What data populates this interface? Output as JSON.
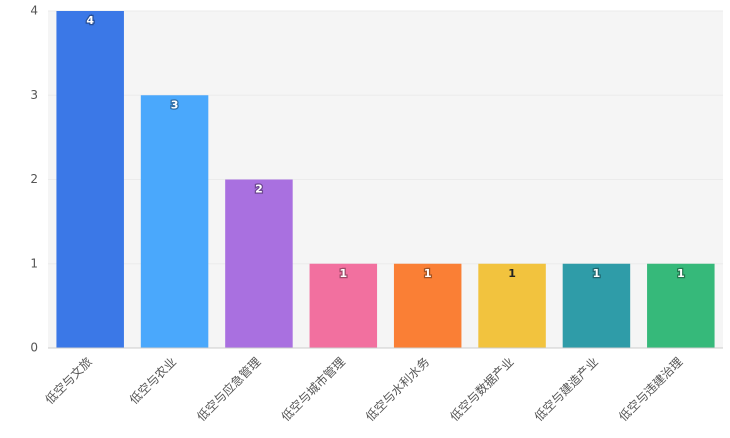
{
  "chart_data": {
    "type": "bar",
    "categories": [
      "低空与文旅",
      "低空与农业",
      "低空与应急管理",
      "低空与城市管理",
      "低空与水利水务",
      "低空与数据产业",
      "低空与建造产业",
      "低空与违建治理"
    ],
    "values": [
      4,
      3,
      2,
      1,
      1,
      1,
      1,
      1
    ],
    "colors": [
      "#3b78e7",
      "#4aa8fc",
      "#a970e0",
      "#f2709f",
      "#fa7f35",
      "#f2c33e",
      "#2f9ca8",
      "#36b97a"
    ],
    "ylim": [
      0,
      4
    ],
    "yticks": [
      0,
      1,
      2,
      3,
      4
    ],
    "grid": true
  }
}
